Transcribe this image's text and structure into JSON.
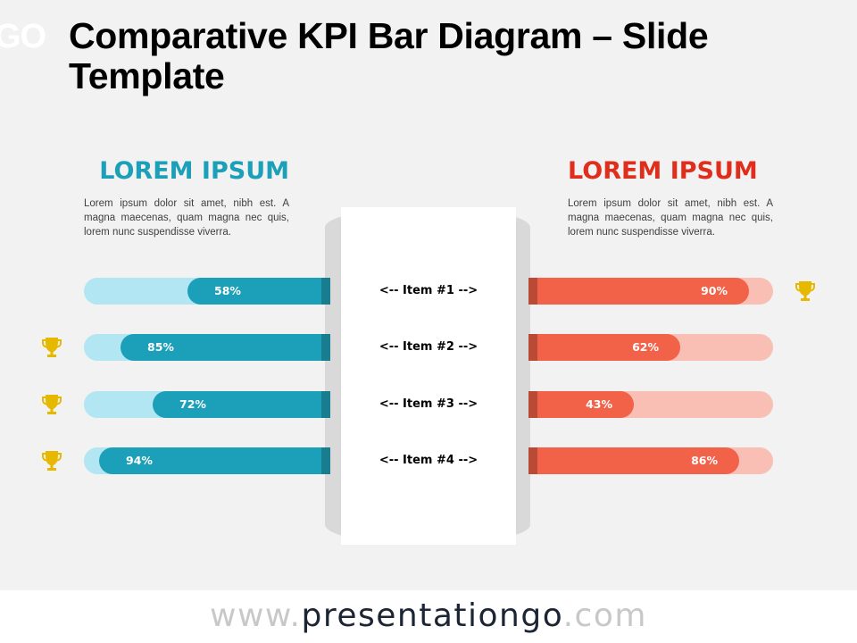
{
  "logo_fragment": "GO",
  "title": "Comparative KPI Bar Diagram – Slide Template",
  "left_column": {
    "heading": "LOREM IPSUM",
    "text": "Lorem ipsum dolor sit amet, nibh est. A magna maecenas, quam magna nec quis, lorem nunc suspendisse viverra.",
    "color": "#1c9fb9"
  },
  "right_column": {
    "heading": "LOREM IPSUM",
    "text": "Lorem ipsum dolor sit amet, nibh est. A magna maecenas, quam magna nec quis, lorem nunc suspendisse viverra.",
    "color": "#df2e1b"
  },
  "items": [
    {
      "label": "<-- Item #1 -->",
      "left_value": "58%",
      "right_value": "90%",
      "winner": "right"
    },
    {
      "label": "<-- Item #2 -->",
      "left_value": "85%",
      "right_value": "62%",
      "winner": "left"
    },
    {
      "label": "<-- Item #3 -->",
      "left_value": "72%",
      "right_value": "43%",
      "winner": "left"
    },
    {
      "label": "<-- Item #4 -->",
      "left_value": "94%",
      "right_value": "86%",
      "winner": "left"
    }
  ],
  "icons": {
    "trophy": "trophy-icon",
    "trophy_color": "#e6b800"
  },
  "footer": {
    "prefix": "www.",
    "brand": "presentationgo",
    "suffix": ".com"
  },
  "chart_data": {
    "type": "bar",
    "title": "Comparative KPI Bar Diagram – Slide Template",
    "categories": [
      "Item #1",
      "Item #2",
      "Item #3",
      "Item #4"
    ],
    "series": [
      {
        "name": "LOREM IPSUM (left)",
        "color": "#1c9fb9",
        "values": [
          58,
          85,
          72,
          94
        ]
      },
      {
        "name": "LOREM IPSUM (right)",
        "color": "#f26249",
        "values": [
          90,
          62,
          43,
          86
        ]
      }
    ],
    "winners": [
      "right",
      "left",
      "left",
      "left"
    ],
    "xlabel": "",
    "ylabel": "",
    "ylim": [
      0,
      100
    ],
    "orientation": "horizontal-diverging"
  }
}
